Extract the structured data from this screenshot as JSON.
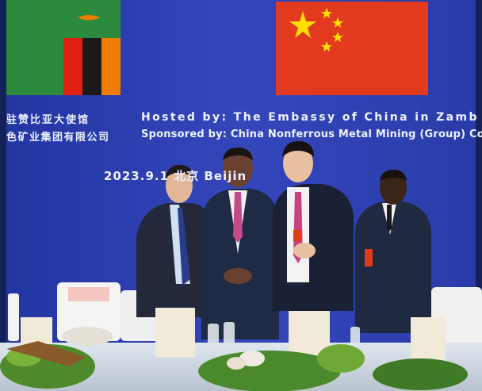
{
  "banner": {
    "cn_host": "驻赞比亚大使馆",
    "en_host": "Hosted  by: The Embassy of China in Zamb",
    "cn_sponsor": "色矿业集团有限公司",
    "en_sponsor": "Sponsored by: China Nonferrous Metal Mining (Group) Co., L",
    "date_place": "2023.9.1  北京  Beijin"
  },
  "colors": {
    "backdrop": "#2f3fb0",
    "zambia_green": "#2c8a3c",
    "china_red": "#e23a1f",
    "star_yellow": "#ffde00"
  }
}
